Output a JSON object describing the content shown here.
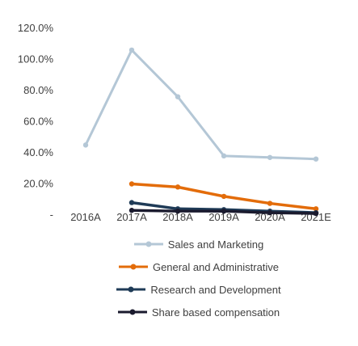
{
  "chart_data": {
    "type": "line",
    "categories": [
      "2016A",
      "2017A",
      "2018A",
      "2019A",
      "2020A",
      "2021E"
    ],
    "y_ticks": [
      "120.0%",
      "100.0%",
      "80.0%",
      "60.0%",
      "40.0%",
      "20.0%",
      "-"
    ],
    "ylim": [
      0,
      120
    ],
    "grid": false,
    "legend_position": "bottom",
    "series": [
      {
        "name": "Sales and Marketing",
        "color": "#b4c7d6",
        "values": [
          45.0,
          106.0,
          76.0,
          38.0,
          37.0,
          36.0
        ]
      },
      {
        "name": "General and Administrative",
        "color": "#e36c0a",
        "values": [
          null,
          20.0,
          18.0,
          12.0,
          7.5,
          4.0
        ]
      },
      {
        "name": "Research and Development",
        "color": "#1f3b57",
        "values": [
          null,
          8.0,
          4.0,
          3.5,
          2.5,
          1.5
        ]
      },
      {
        "name": "Share based compensation",
        "color": "#1a1a2e",
        "values": [
          null,
          3.0,
          2.5,
          2.5,
          1.5,
          1.0
        ]
      }
    ]
  },
  "legend": [
    {
      "label": "Sales and Marketing",
      "color": "#b4c7d6"
    },
    {
      "label": "General and Administrative",
      "color": "#e36c0a"
    },
    {
      "label": "Research and Development",
      "color": "#1f3b57"
    },
    {
      "label": "Share based compensation",
      "color": "#1a1a2e"
    }
  ]
}
